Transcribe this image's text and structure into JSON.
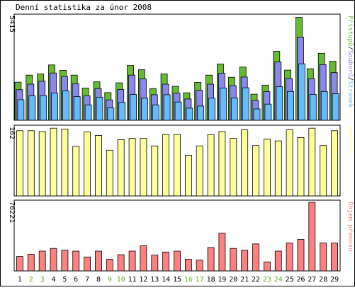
{
  "chart_data": [
    {
      "type": "bar",
      "title": "Denní statistika za únor 2008",
      "ymax_label": "5415",
      "ylim": [
        0,
        5415
      ],
      "legend": [
        "Stránek",
        "Souborů",
        "Přístupů"
      ],
      "categories": [
        "1",
        "2",
        "3",
        "4",
        "5",
        "6",
        "7",
        "8",
        "9",
        "10",
        "11",
        "12",
        "13",
        "14",
        "15",
        "16",
        "17",
        "18",
        "19",
        "20",
        "21",
        "22",
        "23",
        "24",
        "25",
        "26",
        "27",
        "28",
        "29"
      ],
      "weekend_days": [
        "2",
        "3",
        "9",
        "10",
        "16",
        "17",
        "23",
        "24"
      ],
      "series": [
        {
          "name": "Přístupů",
          "values": [
            1980,
            2350,
            2410,
            2880,
            2600,
            2350,
            1680,
            2000,
            1440,
            1950,
            2850,
            2630,
            1650,
            2410,
            1770,
            1430,
            1970,
            2350,
            2930,
            2240,
            2770,
            1360,
            1830,
            3590,
            2610,
            5360,
            2680,
            3490,
            3070
          ]
        },
        {
          "name": "Souborů",
          "values": [
            1590,
            1880,
            2030,
            2460,
            2280,
            1900,
            1270,
            1650,
            1060,
            1600,
            2350,
            2150,
            1330,
            1880,
            1410,
            1110,
            1560,
            1880,
            2450,
            1800,
            2250,
            1030,
            1490,
            3040,
            2170,
            4330,
            2160,
            2900,
            2480
          ]
        },
        {
          "name": "Stránek",
          "values": [
            1070,
            1270,
            1280,
            1420,
            1530,
            1230,
            800,
            1200,
            650,
            930,
            1340,
            1150,
            800,
            1330,
            950,
            630,
            740,
            1150,
            1680,
            1160,
            1690,
            590,
            840,
            1750,
            1500,
            2940,
            1350,
            1500,
            1380
          ]
        }
      ],
      "colors": {
        "Přístupů": "#66bb33",
        "Souborů": "#8888ee",
        "Stránek": "#66bbff"
      }
    },
    {
      "type": "bar",
      "ymax_label": "162",
      "ylim": [
        0,
        162
      ],
      "legend": [
        "Návštěv"
      ],
      "series": [
        {
          "name": "Návštěv",
          "values": [
            154,
            154,
            152,
            160,
            158,
            117,
            151,
            143,
            108,
            133,
            136,
            136,
            118,
            145,
            145,
            96,
            118,
            145,
            152,
            136,
            156,
            119,
            134,
            130,
            156,
            138,
            160,
            119,
            154
          ]
        }
      ],
      "colors": {
        "Návštěv": "#ffff99"
      }
    },
    {
      "type": "bar",
      "ymax_label": "76221",
      "ylim": [
        0,
        76221
      ],
      "legend": [
        "Objem přenosu"
      ],
      "series": [
        {
          "name": "Objem přenosu",
          "values": [
            16000,
            18500,
            22000,
            25000,
            23000,
            22000,
            15500,
            22000,
            13000,
            18000,
            22000,
            28000,
            17500,
            21000,
            22000,
            13000,
            12000,
            26000,
            42000,
            25000,
            23000,
            30000,
            10000,
            22000,
            31000,
            35000,
            76221,
            31000,
            31000
          ]
        }
      ],
      "colors": {
        "Objem přenosu": "#ff8080"
      }
    }
  ]
}
